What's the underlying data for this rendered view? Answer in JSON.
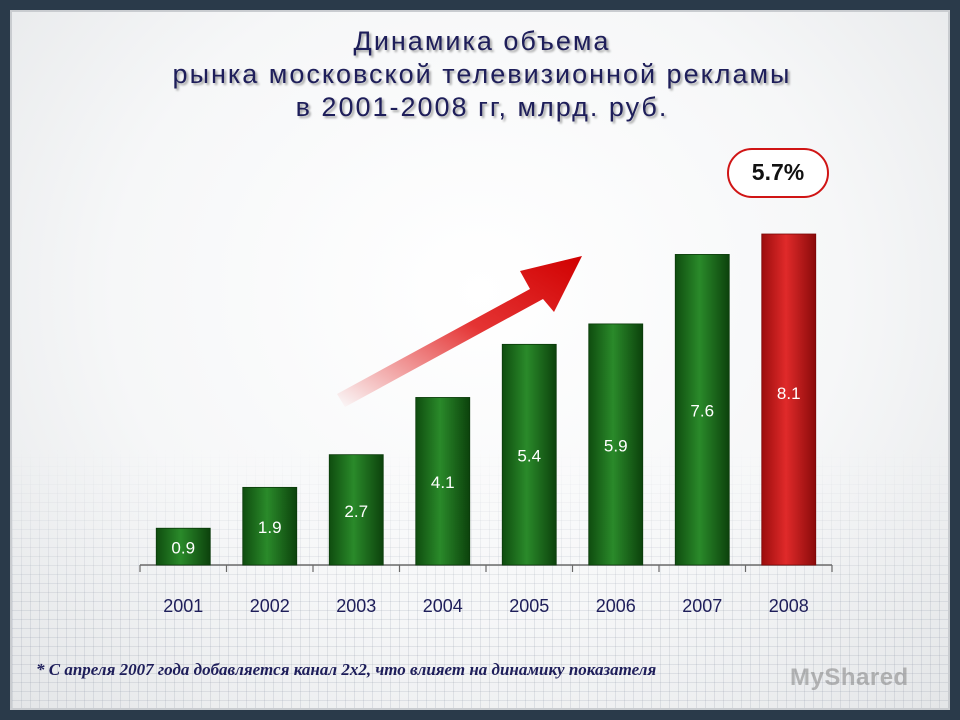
{
  "title": {
    "line1": "Динамика объема",
    "line2": "рынка московской телевизионной рекламы",
    "line3": "в 2001-2008 гг, млрд. руб."
  },
  "badge": "5.7%",
  "footnote": "* С апреля 2007 года добавляется канал 2х2, что влияет на динамику показателя",
  "watermark": "MyShared",
  "colors": {
    "bar": "#1e6e1e",
    "highlight_bar": "#cc1a1a",
    "title": "#1e1e5a",
    "arrow": "#e01010"
  },
  "chart_data": {
    "type": "bar",
    "categories": [
      "2001",
      "2002",
      "2003",
      "2004",
      "2005",
      "2006",
      "2007",
      "2008"
    ],
    "values": [
      0.9,
      1.9,
      2.7,
      4.1,
      5.4,
      5.9,
      7.6,
      8.1
    ],
    "data_labels": [
      "0.9",
      "1.9",
      "2.7",
      "4.1",
      "5.4",
      "5.9",
      "7.6",
      "8.1"
    ],
    "highlight_category": "2008",
    "ylim": [
      0,
      8.1
    ],
    "grid": false,
    "legend": "none"
  }
}
